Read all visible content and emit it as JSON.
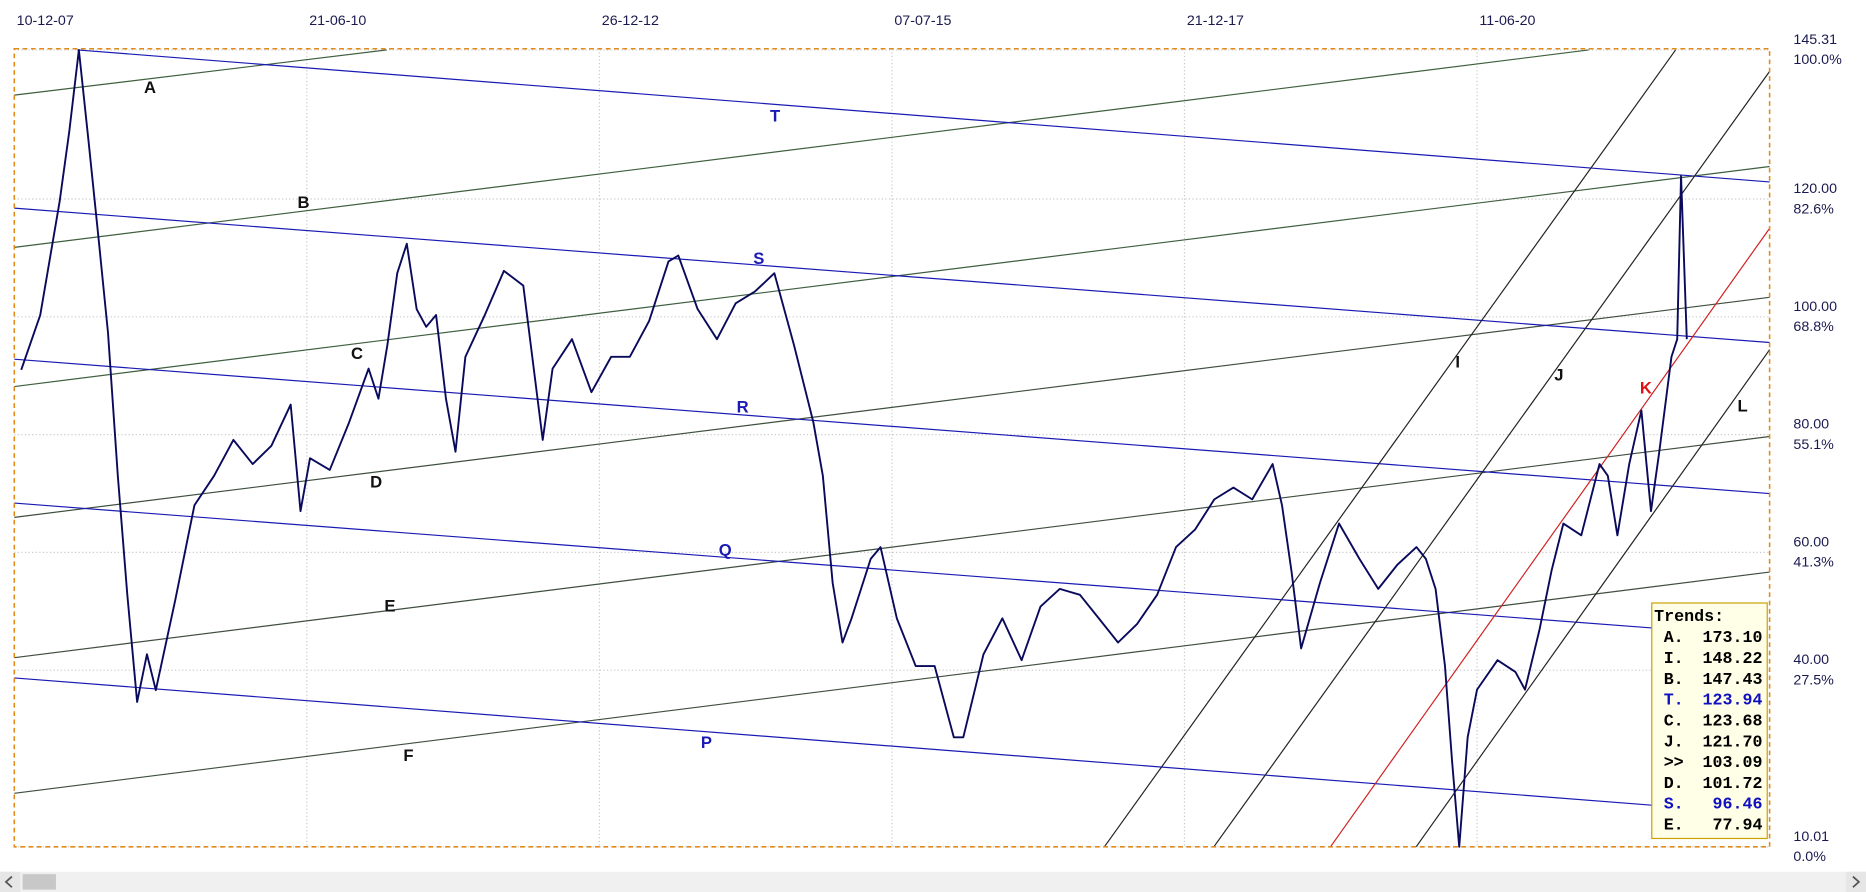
{
  "chart_data": {
    "type": "line",
    "xticks": [
      "10-12-07",
      "21-06-10",
      "26-12-12",
      "07-07-15",
      "21-12-17",
      "11-06-20"
    ],
    "xlim": [
      "10-12-07",
      "13-12-22"
    ],
    "ylim": [
      10.01,
      145.31
    ],
    "yticks": [
      {
        "value": 145.31,
        "label": "145.31"
      },
      {
        "value": 120,
        "label": "120.00"
      },
      {
        "value": 100,
        "label": "100.00"
      },
      {
        "value": 80,
        "label": "80.00"
      },
      {
        "value": 60,
        "label": "60.00"
      },
      {
        "value": 40,
        "label": "40.00"
      },
      {
        "value": 10.01,
        "label": "10.01"
      }
    ],
    "y_percent_labels": [
      "100.0%",
      "82.6%",
      "68.8%",
      "55.1%",
      "41.3%",
      "27.5%",
      "0.0%"
    ],
    "grid": true,
    "series": [
      {
        "color": "#0a0a5c",
        "x": [
          "01-01-08",
          "01-03-08",
          "01-05-08",
          "01-06-08",
          "01-07-08",
          "01-08-08",
          "01-09-08",
          "01-10-08",
          "01-11-08",
          "01-12-08",
          "01-01-09",
          "01-02-09",
          "01-03-09",
          "01-05-09",
          "01-07-09",
          "01-09-09",
          "01-11-09",
          "01-01-10",
          "01-03-10",
          "01-05-10",
          "01-06-10",
          "01-07-10",
          "01-09-10",
          "01-11-10",
          "01-01-11",
          "01-02-11",
          "01-03-11",
          "01-04-11",
          "01-05-11",
          "01-06-11",
          "01-07-11",
          "01-08-11",
          "01-09-11",
          "01-10-11",
          "01-11-11",
          "01-01-12",
          "01-03-12",
          "01-05-12",
          "01-07-12",
          "01-08-12",
          "01-10-12",
          "01-12-12",
          "01-02-13",
          "01-04-13",
          "01-06-13",
          "01-08-13",
          "01-09-13",
          "01-11-13",
          "01-01-14",
          "01-03-14",
          "01-05-14",
          "01-07-14",
          "01-09-14",
          "01-11-14",
          "01-12-14",
          "01-01-15",
          "01-02-15",
          "01-03-15",
          "01-05-15",
          "01-06-15",
          "22-07-15",
          "18-09-15",
          "15-11-15",
          "13-01-16",
          "11-02-16",
          "13-04-16",
          "10-06-16",
          "08-08-16",
          "05-10-16",
          "03-12-16",
          "03-02-17",
          "02-04-17",
          "31-05-17",
          "28-07-17",
          "28-09-17",
          "25-11-17",
          "23-01-18",
          "23-03-18",
          "21-05-18",
          "18-07-18",
          "19-09-18",
          "18-10-18",
          "16-11-18",
          "16-12-18",
          "12-02-19",
          "12-04-19",
          "14-06-19",
          "11-08-19",
          "09-10-19",
          "07-12-19",
          "05-01-20",
          "04-02-20",
          "04-03-20",
          "26-03-20",
          "17-04-20",
          "13-05-20",
          "11-06-20",
          "14-08-20",
          "09-10-20",
          "08-11-20",
          "23-12-20",
          "30-01-21",
          "08-03-21",
          "03-05-21",
          "29-06-21",
          "25-07-21",
          "24-08-21",
          "30-09-21",
          "07-11-21",
          "07-12-21",
          "02-01-22",
          "09-02-22",
          "27-02-22",
          "11-03-22",
          "29-03-22"
        ],
        "values": [
          91.0,
          100.3,
          119.5,
          131.6,
          145.31,
          129.6,
          113.4,
          97.3,
          73.0,
          52.8,
          34.6,
          42.7,
          36.6,
          51.8,
          68.0,
          73.0,
          79.1,
          75.0,
          78.1,
          85.1,
          67.0,
          76.0,
          74.0,
          82.1,
          91.2,
          86.1,
          95.2,
          107.4,
          112.4,
          101.3,
          98.3,
          100.3,
          86.1,
          77.1,
          93.2,
          100.3,
          107.8,
          105.3,
          79.1,
          91.2,
          96.2,
          87.2,
          93.2,
          93.2,
          99.3,
          109.4,
          110.4,
          101.3,
          96.2,
          102.3,
          104.3,
          107.4,
          95.2,
          82.1,
          73.0,
          54.8,
          44.7,
          48.7,
          58.9,
          60.9,
          48.8,
          40.7,
          40.7,
          28.6,
          28.6,
          42.7,
          48.8,
          41.7,
          50.8,
          53.8,
          52.8,
          48.8,
          44.7,
          47.8,
          52.8,
          60.9,
          63.9,
          69.0,
          71.0,
          69.0,
          75.0,
          68.0,
          56.9,
          43.7,
          54.8,
          64.9,
          58.9,
          53.8,
          57.9,
          60.9,
          58.9,
          53.8,
          40.7,
          24.5,
          10.01,
          28.6,
          36.7,
          41.7,
          39.7,
          36.7,
          46.8,
          56.9,
          64.9,
          62.9,
          75.0,
          73.0,
          62.9,
          75.0,
          84.1,
          67.0,
          77.1,
          93.2,
          96.2,
          123.9,
          96.2
        ]
      }
    ],
    "annotations": [
      "A",
      "B",
      "C",
      "D",
      "E",
      "F",
      "T",
      "S",
      "R",
      "Q",
      "P",
      "I",
      "J",
      "K",
      "L"
    ],
    "trends": {
      "title": "Trends:",
      "labels": [
        "A.",
        "I.",
        "B.",
        "T.",
        "C.",
        "J.",
        ">>",
        "D.",
        "S.",
        "E."
      ],
      "values": [
        173.1,
        148.22,
        147.43,
        123.94,
        123.68,
        121.7,
        103.09,
        101.72,
        96.46,
        77.94
      ],
      "value_labels": [
        "173.10",
        "148.22",
        "147.43",
        "123.94",
        "123.68",
        "121.70",
        "103.09",
        "101.72",
        "96.46",
        "77.94"
      ],
      "colors": [
        "#000000",
        "#000000",
        "#000000",
        "#1010c0",
        "#000000",
        "#000000",
        "#000000",
        "#000000",
        "#1010c0",
        "#000000"
      ]
    }
  }
}
